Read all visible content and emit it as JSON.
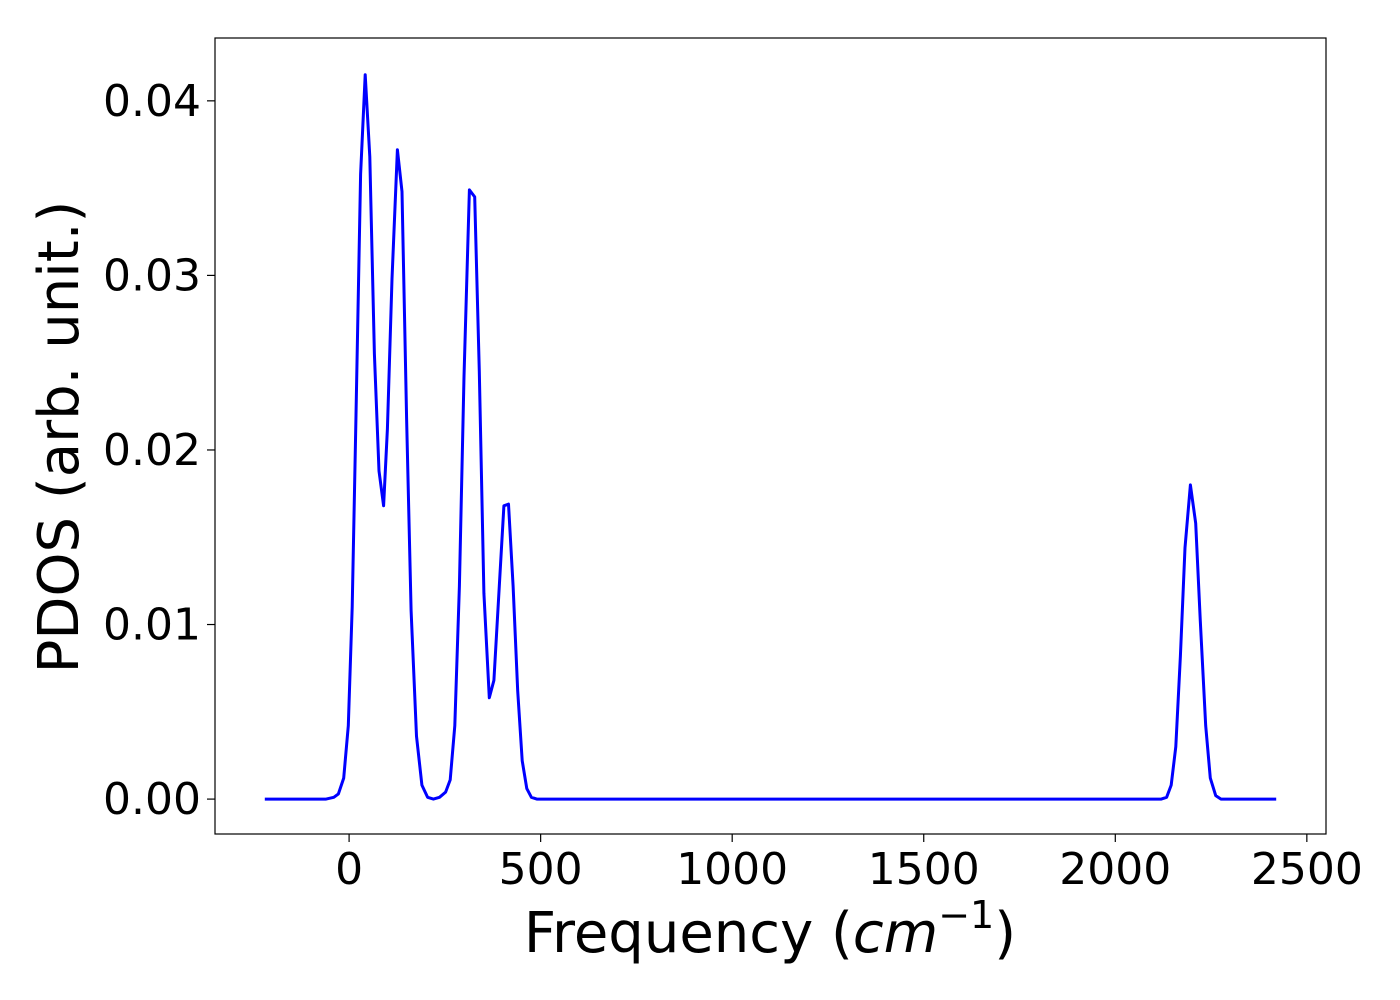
{
  "chart_data": {
    "type": "line",
    "title": "",
    "xlabel": "Frequency (",
    "xlabel_italic": "cm",
    "xlabel_sup": "−1",
    "xlabel_close": ")",
    "ylabel": "PDOS (arb. unit.)",
    "xlim": [
      -350,
      2550
    ],
    "ylim": [
      -0.002,
      0.0436
    ],
    "xticks": [
      0,
      500,
      1000,
      1500,
      2000,
      2500
    ],
    "xtick_labels": [
      "0",
      "500",
      "1000",
      "1500",
      "2000",
      "2500"
    ],
    "yticks": [
      0.0,
      0.01,
      0.02,
      0.03,
      0.04
    ],
    "ytick_labels": [
      "0.00",
      "0.01",
      "0.02",
      "0.03",
      "0.04"
    ],
    "grid": false,
    "series": [
      {
        "color": "#0000ff",
        "x": [
          -220,
          -60,
          -40,
          -28,
          -14,
          -2,
          8,
          18,
          30,
          42,
          54,
          66,
          78,
          90,
          100,
          112,
          126,
          138,
          150,
          162,
          176,
          190,
          205,
          220,
          236,
          252,
          264,
          276,
          288,
          300,
          314,
          328,
          340,
          352,
          366,
          378,
          392,
          404,
          416,
          428,
          440,
          452,
          464,
          476,
          490,
          505,
          520,
          600,
          1000,
          1500,
          2000,
          2120,
          2134,
          2146,
          2158,
          2170,
          2182,
          2196,
          2210,
          2222,
          2236,
          2248,
          2262,
          2276,
          2300,
          2420
        ],
        "y": [
          0.0,
          0.0,
          0.0001,
          0.0003,
          0.0012,
          0.0042,
          0.011,
          0.022,
          0.0358,
          0.0415,
          0.0368,
          0.0255,
          0.0188,
          0.0168,
          0.0212,
          0.0298,
          0.0372,
          0.0348,
          0.0218,
          0.0108,
          0.0036,
          0.0008,
          0.0001,
          0.0,
          0.0001,
          0.0004,
          0.0011,
          0.0042,
          0.0122,
          0.0242,
          0.0349,
          0.0345,
          0.0245,
          0.0118,
          0.0058,
          0.0068,
          0.0122,
          0.0168,
          0.0169,
          0.0122,
          0.0062,
          0.0022,
          0.0006,
          0.0001,
          0.0,
          0.0,
          0.0,
          0.0,
          0.0,
          0.0,
          0.0,
          0.0,
          0.0001,
          0.0008,
          0.003,
          0.0082,
          0.0144,
          0.018,
          0.0158,
          0.0102,
          0.0042,
          0.0012,
          0.0002,
          0.0,
          0.0,
          0.0
        ]
      }
    ]
  }
}
